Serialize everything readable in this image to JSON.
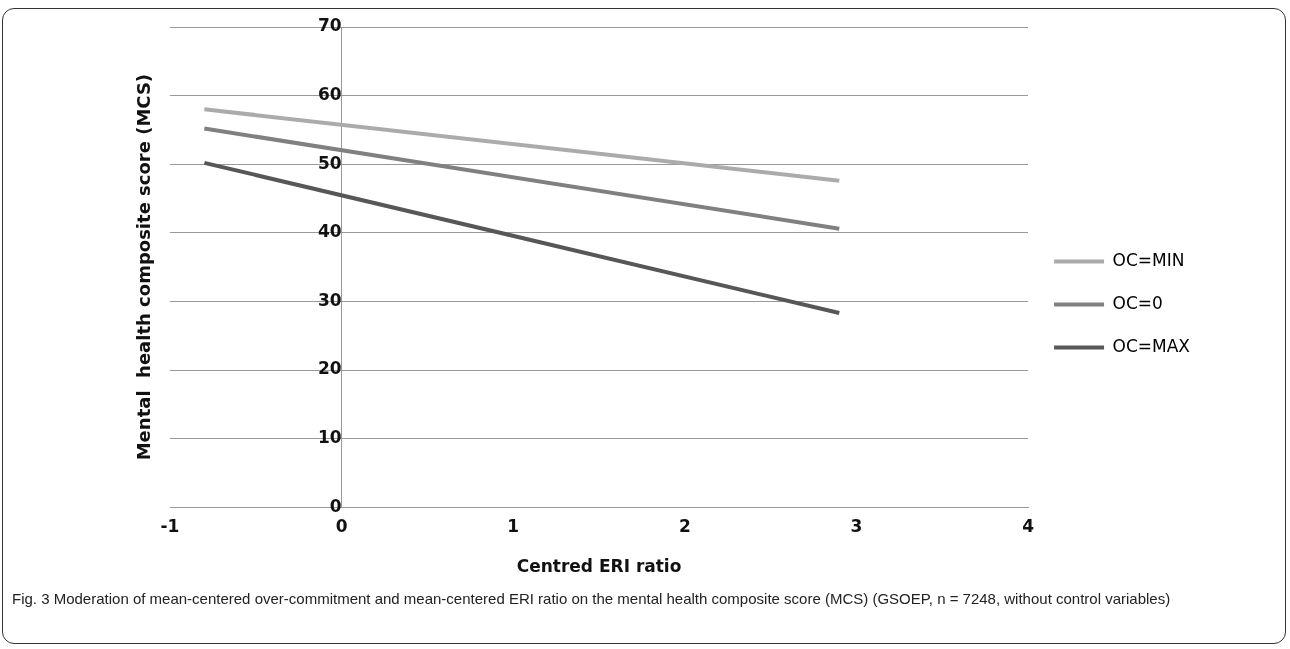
{
  "chart_data": {
    "type": "line",
    "xlabel": "Centred ERI ratio",
    "ylabel": "Mental  health composite score (MCS)",
    "x": [
      -0.8,
      2.9
    ],
    "series": [
      {
        "name": "OC=MIN",
        "color": "#ababab",
        "values": [
          58.0,
          47.6
        ]
      },
      {
        "name": "OC=0",
        "color": "#808080",
        "values": [
          55.2,
          40.6
        ]
      },
      {
        "name": "OC=MAX",
        "color": "#575757",
        "values": [
          50.2,
          28.3
        ]
      }
    ],
    "xlim": [
      -1,
      4
    ],
    "xticks": [
      -1,
      0,
      1,
      2,
      3,
      4
    ],
    "ylim": [
      0,
      70
    ],
    "yticks": [
      0,
      10,
      20,
      30,
      40,
      50,
      60,
      70
    ],
    "grid": "y",
    "legend": "right",
    "marker": "none",
    "line_style": "solid",
    "annotations": [
      "Fig. 3 Moderation of mean-centered over-commitment and mean-centered ERI ratio on the mental health composite score (MCS) (GSOEP, n = 7248, without control variables)"
    ]
  }
}
